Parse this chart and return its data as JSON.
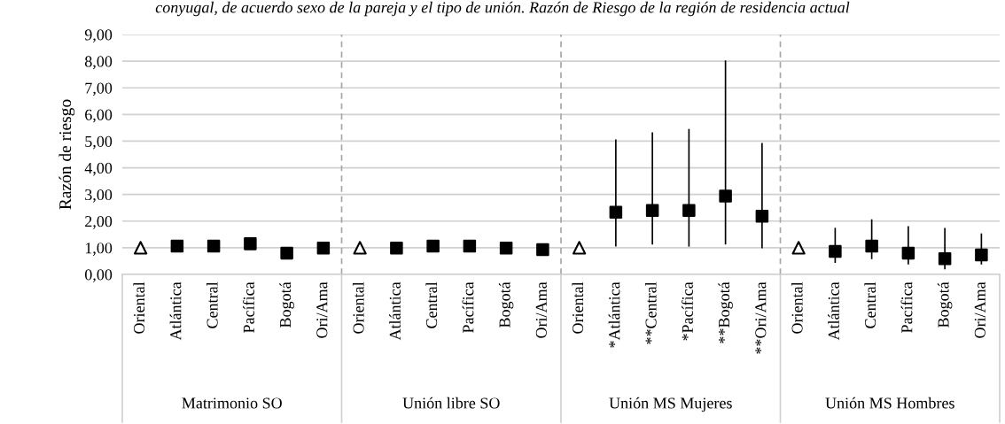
{
  "chart_data": {
    "type": "scatter",
    "title": "conyugal, de acuerdo sexo de la pareja y el tipo de unión. Razón de Riesgo de la región de residencia actual",
    "ylabel": "Razón de riesgo",
    "categories": [
      "Oriental",
      "Atlántica",
      "Central",
      "Pacífica",
      "Bogotá",
      "Ori/Ama",
      "Oriental",
      "Atlántica",
      "Central",
      "Pacífica",
      "Bogotá",
      "Ori/Ama",
      "Oriental",
      "*Atlántica",
      "**Central",
      "*Pacífica",
      "**Bogotá",
      "**Ori/Ama",
      "Oriental",
      "Atlántica",
      "Central",
      "Pacífica",
      "Bogotá",
      "Ori/Ama"
    ],
    "annotations": [
      "Matrimonio SO",
      "Unión libre SO",
      "Unión MS Mujeres",
      "Unión MS Hombres"
    ],
    "series": [
      {
        "color": "#000000",
        "marker": "triangle",
        "values": [
          1.0,
          null,
          null,
          null,
          null,
          null,
          1.0,
          null,
          null,
          null,
          null,
          null,
          1.0,
          null,
          null,
          null,
          null,
          null,
          1.0,
          null,
          null,
          null,
          null,
          null
        ]
      },
      {
        "color": "#000000",
        "marker": "square",
        "values": [
          null,
          1.06,
          1.06,
          1.15,
          0.8,
          0.99,
          null,
          0.99,
          1.06,
          1.06,
          0.99,
          0.93,
          null,
          2.33,
          2.4,
          2.4,
          2.94,
          2.18,
          null,
          0.86,
          1.06,
          0.8,
          0.59,
          0.73
        ],
        "errors": [
          null,
          null,
          null,
          null,
          null,
          null,
          null,
          null,
          null,
          null,
          null,
          null,
          null,
          [
            1.07,
            5.04
          ],
          [
            1.15,
            5.3
          ],
          [
            1.07,
            5.43
          ],
          [
            1.15,
            8.0
          ],
          [
            1.01,
            4.9
          ],
          null,
          [
            0.46,
            1.72
          ],
          [
            0.6,
            2.04
          ],
          [
            0.4,
            1.78
          ],
          [
            0.22,
            1.72
          ],
          [
            0.4,
            1.51
          ]
        ]
      }
    ],
    "ylim": [
      0,
      9
    ],
    "yticks": [
      {
        "value": 0,
        "label": "0,00"
      },
      {
        "value": 1,
        "label": "1,00"
      },
      {
        "value": 2,
        "label": "2,00"
      },
      {
        "value": 3,
        "label": "3,00"
      },
      {
        "value": 4,
        "label": "4,00"
      },
      {
        "value": 5,
        "label": "5,00"
      },
      {
        "value": 6,
        "label": "6,00"
      },
      {
        "value": 7,
        "label": "7,00"
      },
      {
        "value": 8,
        "label": "8,00"
      },
      {
        "value": 9,
        "label": "9,00"
      }
    ],
    "grid": "y"
  }
}
